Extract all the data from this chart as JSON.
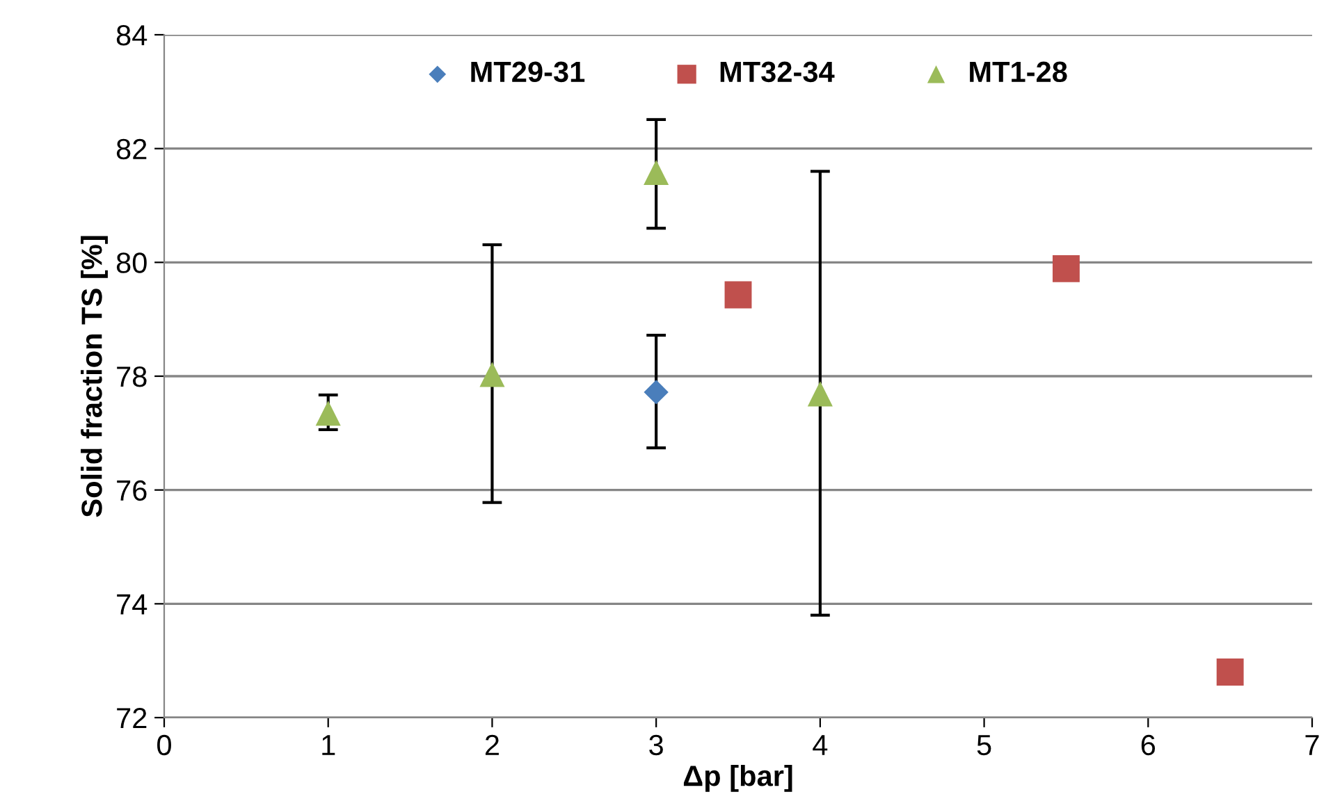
{
  "chart_data": {
    "type": "scatter",
    "xlabel": "Δp [bar]",
    "ylabel": "Solid fraction TS [%]",
    "xlim": [
      0,
      7
    ],
    "xticks": [
      0,
      1,
      2,
      3,
      4,
      5,
      6,
      7
    ],
    "ylim": [
      72,
      84
    ],
    "yticks": [
      72,
      74,
      76,
      78,
      80,
      82,
      84
    ],
    "grid": "y",
    "legend": "top",
    "series": [
      {
        "name": "MT29-31",
        "color": "#4a7ebb",
        "marker": "diamond",
        "x": [
          3
        ],
        "values": [
          77.72
        ],
        "errors": [
          [
            76.74,
            78.72
          ]
        ]
      },
      {
        "name": "MT32-34",
        "color": "#c0504d",
        "marker": "square",
        "x": [
          3.5,
          5.5,
          6.5
        ],
        "values": [
          79.43,
          79.89,
          72.8
        ]
      },
      {
        "name": "MT1-28",
        "color": "#9bbb59",
        "marker": "triangle",
        "x": [
          1,
          2,
          3,
          4
        ],
        "values": [
          77.35,
          78.03,
          81.58,
          77.69
        ],
        "errors": [
          [
            77.06,
            77.67
          ],
          [
            75.78,
            80.31
          ],
          [
            80.6,
            82.51
          ],
          [
            73.8,
            81.6
          ]
        ]
      }
    ]
  }
}
